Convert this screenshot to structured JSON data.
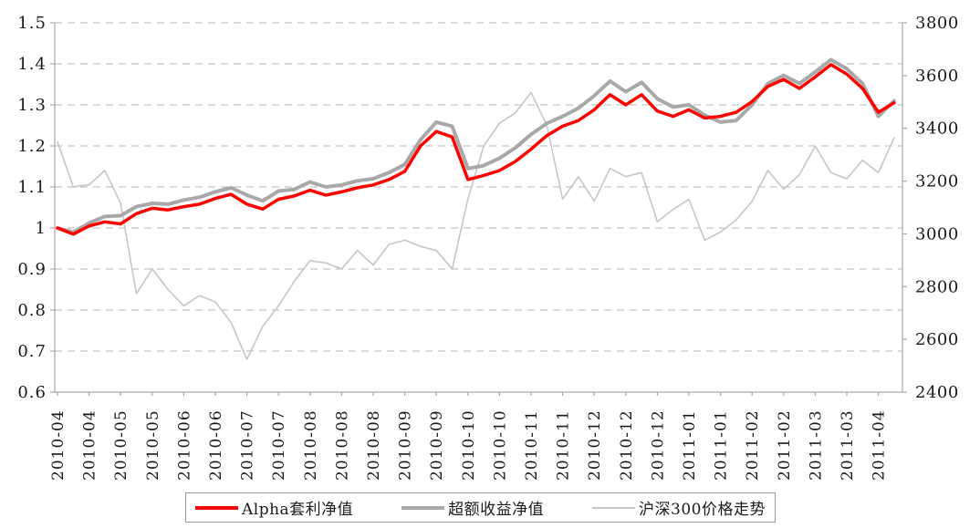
{
  "chart_data": {
    "type": "line",
    "grid": "horizontal-dashed",
    "legend_position": "bottom-center",
    "x_labels": [
      "2010-04",
      "2010-04",
      "2010-05",
      "2010-05",
      "2010-06",
      "2010-06",
      "2010-07",
      "2010-07",
      "2010-08",
      "2010-08",
      "2010-08",
      "2010-09",
      "2010-09",
      "2010-10",
      "2010-10",
      "2010-11",
      "2010-11",
      "2010-12",
      "2010-12",
      "2010-12",
      "2011-01",
      "2011-01",
      "2011-02",
      "2011-02",
      "2011-03",
      "2011-03",
      "2011-04"
    ],
    "axes": {
      "left": {
        "min": 0.6,
        "max": 1.5,
        "ticks": [
          {
            "label": "1.5",
            "value": 1.5
          },
          {
            "label": "1.4",
            "value": 1.4
          },
          {
            "label": "1.3",
            "value": 1.3
          },
          {
            "label": "1.2",
            "value": 1.2
          },
          {
            "label": "1.1",
            "value": 1.1
          },
          {
            "label": "1",
            "value": 1.0
          },
          {
            "label": "0.9",
            "value": 0.9
          },
          {
            "label": "0.8",
            "value": 0.8
          },
          {
            "label": "0.7",
            "value": 0.7
          },
          {
            "label": "0.6",
            "value": 0.6
          }
        ]
      },
      "right": {
        "min": 2400,
        "max": 3800,
        "ticks": [
          {
            "label": "3800",
            "value": 3800
          },
          {
            "label": "3600",
            "value": 3600
          },
          {
            "label": "3400",
            "value": 3400
          },
          {
            "label": "3200",
            "value": 3200
          },
          {
            "label": "3000",
            "value": 3000
          },
          {
            "label": "2800",
            "value": 2800
          },
          {
            "label": "2600",
            "value": 2600
          },
          {
            "label": "2400",
            "value": 2400
          }
        ]
      }
    },
    "series": [
      {
        "name": "Alpha套利净值",
        "axis": "left",
        "color": "#ff0000",
        "width": 3.5,
        "z": 3,
        "values": [
          1.0,
          0.985,
          1.005,
          1.015,
          1.01,
          1.035,
          1.048,
          1.044,
          1.052,
          1.058,
          1.072,
          1.082,
          1.058,
          1.046,
          1.07,
          1.078,
          1.092,
          1.08,
          1.088,
          1.098,
          1.105,
          1.118,
          1.138,
          1.2,
          1.235,
          1.222,
          1.118,
          1.128,
          1.14,
          1.162,
          1.192,
          1.225,
          1.248,
          1.262,
          1.288,
          1.325,
          1.3,
          1.325,
          1.285,
          1.272,
          1.288,
          1.268,
          1.272,
          1.282,
          1.308,
          1.345,
          1.362,
          1.34,
          1.368,
          1.398,
          1.375,
          1.34,
          1.282,
          1.305
        ]
      },
      {
        "name": "超额收益净值",
        "axis": "left",
        "color": "#a8a8a8",
        "width": 4,
        "z": 2,
        "values": [
          1.0,
          0.99,
          1.012,
          1.028,
          1.03,
          1.052,
          1.06,
          1.058,
          1.068,
          1.075,
          1.088,
          1.098,
          1.08,
          1.066,
          1.09,
          1.094,
          1.112,
          1.1,
          1.105,
          1.115,
          1.12,
          1.135,
          1.155,
          1.215,
          1.258,
          1.248,
          1.145,
          1.152,
          1.17,
          1.195,
          1.228,
          1.255,
          1.272,
          1.292,
          1.322,
          1.358,
          1.332,
          1.355,
          1.315,
          1.295,
          1.3,
          1.275,
          1.258,
          1.262,
          1.3,
          1.352,
          1.372,
          1.352,
          1.38,
          1.41,
          1.388,
          1.352,
          1.272,
          1.31
        ]
      },
      {
        "name": "沪深300价格走势",
        "axis": "right",
        "color": "#c6c6c6",
        "width": 1.6,
        "z": 1,
        "values": [
          3349,
          3178,
          3186,
          3240,
          3116,
          2773,
          2867,
          2789,
          2727,
          2766,
          2742,
          2664,
          2524,
          2649,
          2727,
          2820,
          2898,
          2890,
          2867,
          2937,
          2882,
          2960,
          2976,
          2952,
          2937,
          2867,
          3131,
          3333,
          3419,
          3458,
          3536,
          3411,
          3131,
          3217,
          3123,
          3248,
          3217,
          3232,
          3046,
          3092,
          3131,
          2976,
          3007,
          3053,
          3123,
          3240,
          3170,
          3224,
          3333,
          3232,
          3209,
          3279,
          3232,
          3364
        ]
      }
    ]
  }
}
